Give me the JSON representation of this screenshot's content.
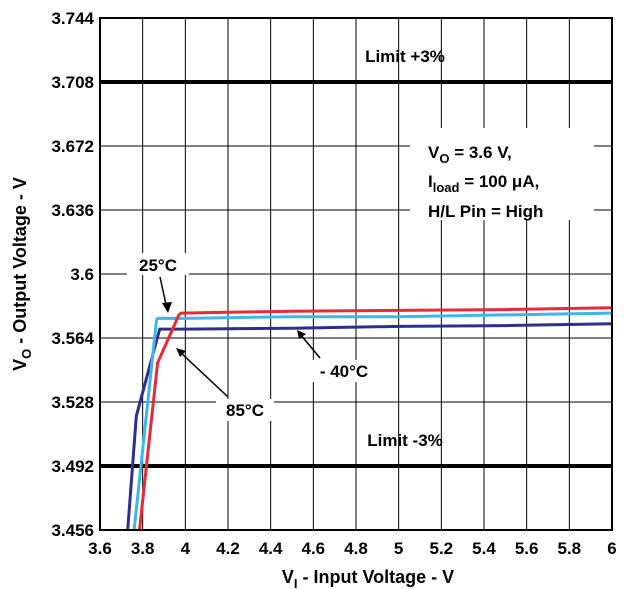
{
  "chart_data": {
    "type": "line",
    "xlabel": "V",
    "xlabel_sub": "I",
    "xlabel_rest": " - Input Voltage - V",
    "ylabel": "V",
    "ylabel_sub": "O",
    "ylabel_rest": " - Output Voltage - V",
    "xlim": [
      3.6,
      6.0
    ],
    "ylim": [
      3.456,
      3.744
    ],
    "x_ticks": [
      "3.6",
      "3.8",
      "4",
      "4.2",
      "4.4",
      "4.6",
      "4.8",
      "5",
      "5.2",
      "5.4",
      "5.6",
      "5.8",
      "6"
    ],
    "y_ticks": [
      "3.456",
      "3.492",
      "3.528",
      "3.564",
      "3.6",
      "3.636",
      "3.672",
      "3.708",
      "3.744"
    ],
    "grid": true,
    "limit_lines": [
      {
        "label": "Limit +3%",
        "y": 3.708
      },
      {
        "label": "Limit -3%",
        "y": 3.492
      }
    ],
    "conditions": {
      "line1_main": "V",
      "line1_sub": "O",
      "line1_rest": " = 3.6 V,",
      "line2_main": "I",
      "line2_sub": "load",
      "line2_rest": " = 100 μA,",
      "line3": "H/L Pin = High"
    },
    "series": [
      {
        "name": "25°C",
        "color": "#3fb6e6",
        "x": [
          3.76,
          3.865,
          3.87,
          4.0,
          4.5,
          5.0,
          5.5,
          6.0
        ],
        "y": [
          3.456,
          3.574,
          3.575,
          3.575,
          3.576,
          3.576,
          3.577,
          3.578
        ]
      },
      {
        "name": "85°C",
        "color": "#e52b3a",
        "x": [
          3.785,
          3.87,
          3.97,
          3.98,
          4.2,
          4.5,
          5.0,
          5.5,
          6.0
        ],
        "y": [
          3.456,
          3.55,
          3.577,
          3.578,
          3.5785,
          3.579,
          3.5795,
          3.58,
          3.581
        ]
      },
      {
        "name": "- 40°C",
        "color": "#2e2f8c",
        "x": [
          3.73,
          3.77,
          3.88,
          3.89,
          4.0,
          4.5,
          5.0,
          5.5,
          6.0
        ],
        "y": [
          3.456,
          3.52,
          3.569,
          3.569,
          3.569,
          3.5695,
          3.5705,
          3.571,
          3.572
        ]
      }
    ]
  }
}
